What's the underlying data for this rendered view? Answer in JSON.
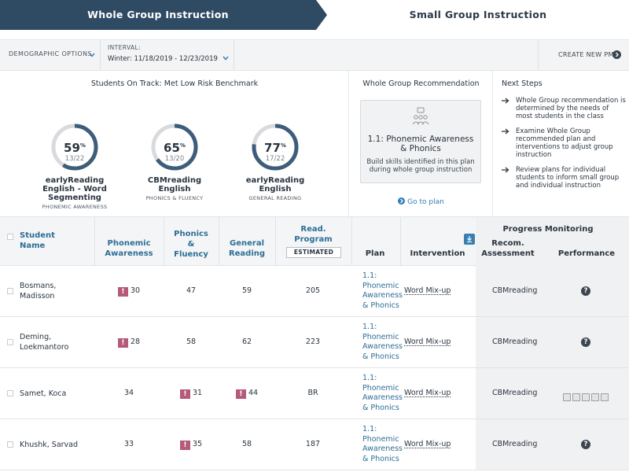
{
  "tabs": {
    "active": "Whole Group Instruction",
    "inactive": "Small Group Instruction"
  },
  "filters": {
    "demographic": "DEMOGRAPHIC OPTIONS",
    "interval_caption": "INTERVAL:",
    "interval_value": "Winter: 11/18/2019 - 12/23/2019",
    "create_pm": "CREATE NEW PM"
  },
  "students_on_track": {
    "title": "Students On Track: Met Low Risk Benchmark",
    "gauges": [
      {
        "pct": "59",
        "frac": "13/22",
        "fraction": 0.59,
        "name_lines": [
          "earlyReading",
          "English - Word",
          "Segmenting"
        ],
        "sub": "PHONEMIC AWARENESS"
      },
      {
        "pct": "65",
        "frac": "13/20",
        "fraction": 0.65,
        "name_lines": [
          "CBMreading",
          "English"
        ],
        "sub": "PHONICS & FLUENCY"
      },
      {
        "pct": "77",
        "frac": "17/22",
        "fraction": 0.77,
        "name_lines": [
          "earlyReading",
          "English"
        ],
        "sub": "GENERAL READING"
      }
    ],
    "pct_sign": "%"
  },
  "recommendation": {
    "title": "Whole Group Recommendation",
    "plan_lines": [
      "1.1: Phonemic Awareness",
      "& Phonics"
    ],
    "desc_lines": [
      "Build skills identified in this plan",
      "during whole group instruction"
    ],
    "goto": "Go to plan",
    "icon": "group-instruction-icon"
  },
  "next_steps": {
    "title": "Next Steps",
    "items": [
      "Whole Group recommendation is determined by the needs of most students in the class",
      "Examine Whole Group recommended plan and interventions to adjust group instruction",
      "Review plans for individual students to inform small group and individual instruction"
    ]
  },
  "table": {
    "headers": {
      "student": [
        "Student",
        "Name"
      ],
      "phonemic": [
        "Phonemic",
        "Awareness"
      ],
      "phonics": [
        "Phonics",
        "&",
        "Fluency"
      ],
      "general": [
        "General",
        "Reading"
      ],
      "read_program": [
        "Read.",
        "Program"
      ],
      "estimated": "ESTIMATED",
      "plan": "Plan",
      "intervention": "Intervention",
      "progress_monitoring": "Progress Monitoring",
      "recom": [
        "Recom.",
        "Assessment"
      ],
      "performance": "Performance"
    },
    "rows": [
      {
        "name": [
          "Bosmans,",
          "Madisson"
        ],
        "phonemic": "30",
        "phonemic_flag": true,
        "phonics": "47",
        "phonics_flag": false,
        "general": "59",
        "general_flag": false,
        "read": "205",
        "plan": [
          "1.1:",
          "Phonemic",
          "Awareness",
          "& Phonics"
        ],
        "intervention": "Word Mix-up",
        "recom": "CBMreading",
        "perf": "q"
      },
      {
        "name": [
          "Deming,",
          "Loekmantoro"
        ],
        "phonemic": "28",
        "phonemic_flag": true,
        "phonics": "58",
        "phonics_flag": false,
        "general": "62",
        "general_flag": false,
        "read": "223",
        "plan": [
          "1.1:",
          "Phonemic",
          "Awareness",
          "& Phonics"
        ],
        "intervention": "Word Mix-up",
        "recom": "CBMreading",
        "perf": "q"
      },
      {
        "name": [
          "Samet, Koca"
        ],
        "phonemic": "34",
        "phonemic_flag": false,
        "phonics": "31",
        "phonics_flag": true,
        "general": "44",
        "general_flag": true,
        "read": "BR",
        "plan": [
          "1.1:",
          "Phonemic",
          "Awareness",
          "& Phonics"
        ],
        "intervention": "Word Mix-up",
        "recom": "CBMreading",
        "perf": "boxes"
      },
      {
        "name": [
          "Khushk, Sarvad"
        ],
        "phonemic": "33",
        "phonemic_flag": false,
        "phonics": "35",
        "phonics_flag": true,
        "general": "58",
        "general_flag": false,
        "read": "187",
        "plan": [
          "1.1:",
          "Phonemic",
          "Awareness",
          "& Phonics"
        ],
        "intervention": "Word Mix-up",
        "recom": "CBMreading",
        "perf": "q"
      }
    ],
    "flag_symbol": "!",
    "perf_symbol": "?"
  },
  "colors": {
    "tab_active": "#2f4a63",
    "gauge_fill": "#3e5d7b",
    "gauge_track": "#d8dadd",
    "link": "#2d6e96",
    "flag": "#b55a7a"
  }
}
